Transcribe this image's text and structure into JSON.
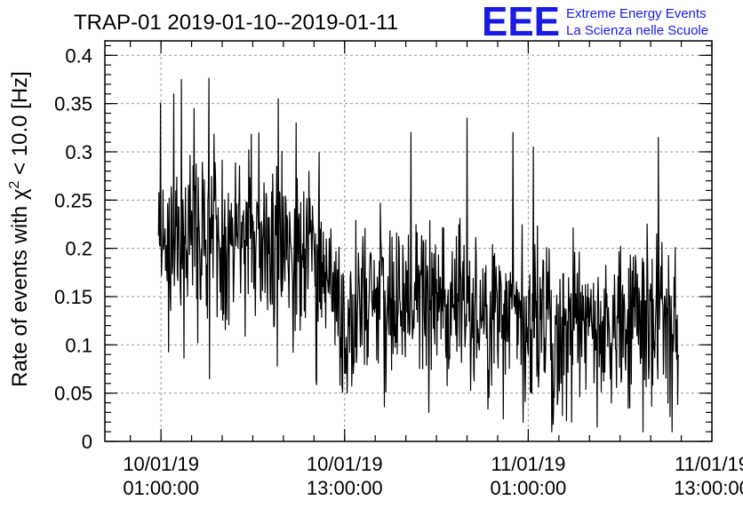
{
  "logo": {
    "mark": "EEE",
    "line1": "Extreme Energy Events",
    "line2": "La Scienza nelle Scuole",
    "color": "#1a1ae6"
  },
  "chart_data": {
    "type": "line",
    "title": "TRAP-01 2019-01-10--2019-01-11",
    "ylabel_prefix": "Rate of events with χ",
    "ylabel_sup": "2",
    "ylabel_suffix": " < 10.0 [Hz]",
    "xlim": [
      "2019-01-09T21:20:00",
      "2019-01-11T13:00:00"
    ],
    "ylim": [
      0,
      0.415
    ],
    "grid": true,
    "x_ticks": [
      {
        "x": "2019-01-10T01:00:00",
        "line1": "10/01/19",
        "line2": "01:00:00"
      },
      {
        "x": "2019-01-10T13:00:00",
        "line1": "10/01/19",
        "line2": "13:00:00"
      },
      {
        "x": "2019-01-11T01:00:00",
        "line1": "11/01/19",
        "line2": "01:00:00"
      },
      {
        "x": "2019-01-11T13:00:00",
        "line1": "11/01/19",
        "line2": "13:00:00"
      }
    ],
    "y_ticks": [
      {
        "v": 0,
        "label": "0"
      },
      {
        "v": 0.05,
        "label": "0.05"
      },
      {
        "v": 0.1,
        "label": "0.1"
      },
      {
        "v": 0.15,
        "label": "0.15"
      },
      {
        "v": 0.2,
        "label": "0.2"
      },
      {
        "v": 0.25,
        "label": "0.25"
      },
      {
        "v": 0.3,
        "label": "0.3"
      },
      {
        "v": 0.35,
        "label": "0.35"
      },
      {
        "v": 0.4,
        "label": "0.4"
      }
    ],
    "series_color": "#000000",
    "time_range": {
      "start": "2019-01-10T00:50:00",
      "end": "2019-01-11T10:50:00",
      "step_minutes": 2
    },
    "trend_points": [
      {
        "x": "2019-01-10T00:50:00",
        "y": 0.215
      },
      {
        "x": "2019-01-10T04:00:00",
        "y": 0.205
      },
      {
        "x": "2019-01-10T08:00:00",
        "y": 0.2
      },
      {
        "x": "2019-01-10T10:30:00",
        "y": 0.19
      },
      {
        "x": "2019-01-10T12:00:00",
        "y": 0.16
      },
      {
        "x": "2019-01-10T13:00:00",
        "y": 0.11
      },
      {
        "x": "2019-01-10T14:00:00",
        "y": 0.145
      },
      {
        "x": "2019-01-10T19:00:00",
        "y": 0.145
      },
      {
        "x": "2019-01-10T22:00:00",
        "y": 0.135
      },
      {
        "x": "2019-01-11T01:00:00",
        "y": 0.12
      },
      {
        "x": "2019-01-11T04:00:00",
        "y": 0.125
      },
      {
        "x": "2019-01-11T08:00:00",
        "y": 0.125
      },
      {
        "x": "2019-01-11T10:50:00",
        "y": 0.125
      }
    ],
    "spread": 0.045,
    "notable_values": [
      {
        "x": "2019-01-10T02:20:00",
        "y": 0.375
      },
      {
        "x": "2019-01-10T01:50:00",
        "y": 0.36
      },
      {
        "x": "2019-01-10T08:40:00",
        "y": 0.355
      },
      {
        "x": "2019-01-10T03:10:00",
        "y": 0.345
      },
      {
        "x": "2019-01-10T09:50:00",
        "y": 0.33
      },
      {
        "x": "2019-01-10T17:20:00",
        "y": 0.32
      },
      {
        "x": "2019-01-10T21:00:00",
        "y": 0.335
      },
      {
        "x": "2019-01-11T00:00:00",
        "y": 0.32
      },
      {
        "x": "2019-01-11T01:20:00",
        "y": 0.305
      },
      {
        "x": "2019-01-11T09:30:00",
        "y": 0.315
      },
      {
        "x": "2019-01-10T04:10:00",
        "y": 0.065
      },
      {
        "x": "2019-01-10T13:10:00",
        "y": 0.05
      },
      {
        "x": "2019-01-10T18:30:00",
        "y": 0.03
      },
      {
        "x": "2019-01-11T00:40:00",
        "y": 0.02
      },
      {
        "x": "2019-01-11T05:30:00",
        "y": 0.015
      }
    ]
  }
}
